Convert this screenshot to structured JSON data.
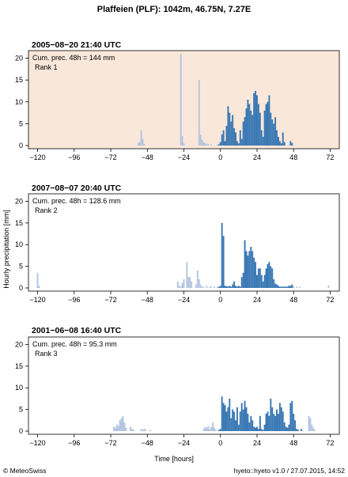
{
  "page_title": "Plaffeien (PLF): 1042m, 46.75N, 7.27E",
  "footer": {
    "copyright": "© MeteoSwiss",
    "version": "hyeto::hyeto v1.0 / 27.07.2015, 14:52"
  },
  "colors": {
    "pre_event": "#b3c6e0",
    "event": "#3a78b4",
    "highlight_bg": "#f9e8da",
    "axis": "#000000"
  },
  "chart_data": {
    "type": "bar",
    "title": "Plaffeien (PLF): 1042m, 46.75N, 7.27E",
    "xlabel": "Time [hours]",
    "ylabel": "Hourly precipitation [mm]",
    "xlim": [
      -126,
      78
    ],
    "ylim": [
      0,
      21
    ],
    "xticks": [
      -120,
      -96,
      -72,
      -48,
      -24,
      0,
      24,
      48,
      72
    ],
    "xtick_labels": [
      "−120",
      "−96",
      "−72",
      "−48",
      "−24",
      "0",
      "24",
      "48",
      "72"
    ],
    "yticks": [
      0,
      5,
      10,
      15,
      20
    ],
    "panels": [
      {
        "title": "2005−08−20 21:40 UTC",
        "annotation_line1": "Cum. prec. 48h = 144 mm",
        "annotation_line2": "Rank 1",
        "highlight": true,
        "series": [
          {
            "role": "pre",
            "x": [
              -54,
              -53,
              -52,
              -51,
              -50,
              -26,
              -25,
              -24,
              -14,
              -13,
              -12,
              -11,
              -10,
              -9,
              -8,
              -6,
              -2
            ],
            "values": [
              0.6,
              0.8,
              3.5,
              1.5,
              0.4,
              21,
              2.2,
              0.5,
              15,
              2.5,
              1.3,
              0.8,
              0.5,
              0.3,
              0.4,
              0.3,
              0.2
            ]
          },
          {
            "role": "event",
            "x": [
              -1,
              0,
              1,
              2,
              3,
              4,
              5,
              6,
              7,
              8,
              9,
              10,
              11,
              12,
              13,
              14,
              15,
              16,
              17,
              18,
              19,
              20,
              21,
              22,
              23,
              24,
              25,
              26,
              27,
              28,
              29,
              30,
              31,
              32,
              33,
              34,
              35,
              36,
              37,
              38,
              39,
              40,
              41,
              42,
              43,
              44,
              45,
              46,
              47
            ],
            "values": [
              0.3,
              0.8,
              2.5,
              3.5,
              1.0,
              4.5,
              9.0,
              7.5,
              5.5,
              7.0,
              4.0,
              3.0,
              1.0,
              0.5,
              3.5,
              1.5,
              5.5,
              6.5,
              8.5,
              10.5,
              9.5,
              8.0,
              7.0,
              12.0,
              12.5,
              11.5,
              9.5,
              7.5,
              3.5,
              2.0,
              8.0,
              9.5,
              10.0,
              11.5,
              7.5,
              6.0,
              5.0,
              6.5,
              3.5,
              2.0,
              1.0,
              0.5,
              3.0,
              0.8,
              0,
              0,
              0,
              1.0,
              0.6
            ]
          }
        ]
      },
      {
        "title": "2007−08−07 20:40 UTC",
        "annotation_line1": "Cum. prec. 48h = 128.6 mm",
        "annotation_line2": "Rank 2",
        "highlight": false,
        "series": [
          {
            "role": "pre",
            "x": [
              -120,
              -119,
              -28,
              -27,
              -26,
              -25,
              -24,
              -22,
              -21,
              -20,
              -19,
              -16,
              -15,
              -14,
              -13,
              -12,
              -11,
              -9,
              -7,
              -6,
              -4,
              -2
            ],
            "values": [
              3.5,
              0.5,
              1.5,
              0.5,
              0.3,
              1.2,
              2.0,
              6.0,
              2.5,
              2.5,
              1.5,
              0.8,
              4.0,
              2.0,
              0.8,
              0.3,
              0.2,
              0.5,
              0.3,
              0.3,
              0.3,
              0.3
            ]
          },
          {
            "role": "event",
            "x": [
              -1,
              0,
              1,
              2,
              3,
              4,
              5,
              6,
              7,
              8,
              9,
              10,
              11,
              12,
              13,
              14,
              15,
              16,
              17,
              18,
              19,
              20,
              21,
              22,
              23,
              24,
              25,
              26,
              27,
              28,
              29,
              30,
              31,
              32,
              33,
              34,
              35,
              36,
              37,
              38,
              39,
              40,
              41,
              42,
              43,
              44,
              45,
              46,
              47
            ],
            "values": [
              0.3,
              0.5,
              15.0,
              12.0,
              0.5,
              0.4,
              0.3,
              0.5,
              0.3,
              0.8,
              1.5,
              0.5,
              0.3,
              0.5,
              0.3,
              2.5,
              3.5,
              11.0,
              8.5,
              7.5,
              8.5,
              9.5,
              8.5,
              7.0,
              6.0,
              3.0,
              4.5,
              4.5,
              3.0,
              1.5,
              3.0,
              4.5,
              5.5,
              6.0,
              5.0,
              4.5,
              2.0,
              1.0,
              0.8,
              0.5,
              0.3,
              0.3,
              0.3,
              0.3,
              0.3,
              0.3,
              0.5,
              0.5,
              0.8
            ]
          },
          {
            "role": "pre",
            "x": [
              48,
              50,
              52,
              71
            ],
            "values": [
              0.4,
              0.3,
              0.3,
              0.6
            ]
          }
        ]
      },
      {
        "title": "2001−06−08 16:40 UTC",
        "annotation_line1": "Cum. prec. 48h = 95.3 mm",
        "annotation_line2": "Rank 3",
        "highlight": false,
        "series": [
          {
            "role": "pre",
            "x": [
              -70,
              -69,
              -68,
              -67,
              -66,
              -65,
              -64,
              -63,
              -62,
              -59,
              -58,
              -57,
              -52,
              -51,
              -50,
              -49,
              -46,
              -11,
              -10,
              -9,
              -8,
              -7,
              -6,
              -5,
              -4,
              -3
            ],
            "values": [
              1.0,
              0.8,
              1.5,
              1.2,
              2.5,
              3.0,
              3.5,
              2.0,
              0.8,
              1.0,
              0.5,
              0.3,
              0.5,
              0.3,
              0.6,
              0.3,
              0.3,
              0.5,
              1.0,
              0.8,
              1.2,
              0.5,
              1.0,
              2.0,
              0.8,
              0.3
            ]
          },
          {
            "role": "event",
            "x": [
              -1,
              0,
              1,
              2,
              3,
              4,
              5,
              6,
              7,
              8,
              9,
              10,
              11,
              12,
              13,
              14,
              15,
              16,
              17,
              18,
              19,
              20,
              21,
              22,
              23,
              24,
              25,
              26,
              27,
              28,
              29,
              30,
              31,
              32,
              33,
              34,
              35,
              36,
              37,
              38,
              39,
              40,
              41,
              42,
              43,
              44,
              45,
              46,
              47,
              48,
              49,
              50,
              51,
              52,
              53
            ],
            "values": [
              0.3,
              0.5,
              8.0,
              6.5,
              6.0,
              4.5,
              5.5,
              7.5,
              3.0,
              5.0,
              4.5,
              2.5,
              5.5,
              1.5,
              4.5,
              6.5,
              5.0,
              7.0,
              5.5,
              4.0,
              2.0,
              3.5,
              2.5,
              1.0,
              0.8,
              1.0,
              0.5,
              3.5,
              0.5,
              0.3,
              1.5,
              4.0,
              4.5,
              3.5,
              7.5,
              5.5,
              4.0,
              3.5,
              5.0,
              4.0,
              6.5,
              5.5,
              4.5,
              2.0,
              1.0,
              0.8,
              1.5,
              6.5,
              7.0,
              4.0,
              2.5,
              0.5,
              0.3,
              0,
              0.5
            ]
          },
          {
            "role": "pre",
            "x": [
              58,
              59,
              60,
              61,
              62
            ],
            "values": [
              3.5,
              3.0,
              1.5,
              0.8,
              0.3
            ]
          }
        ]
      }
    ]
  }
}
